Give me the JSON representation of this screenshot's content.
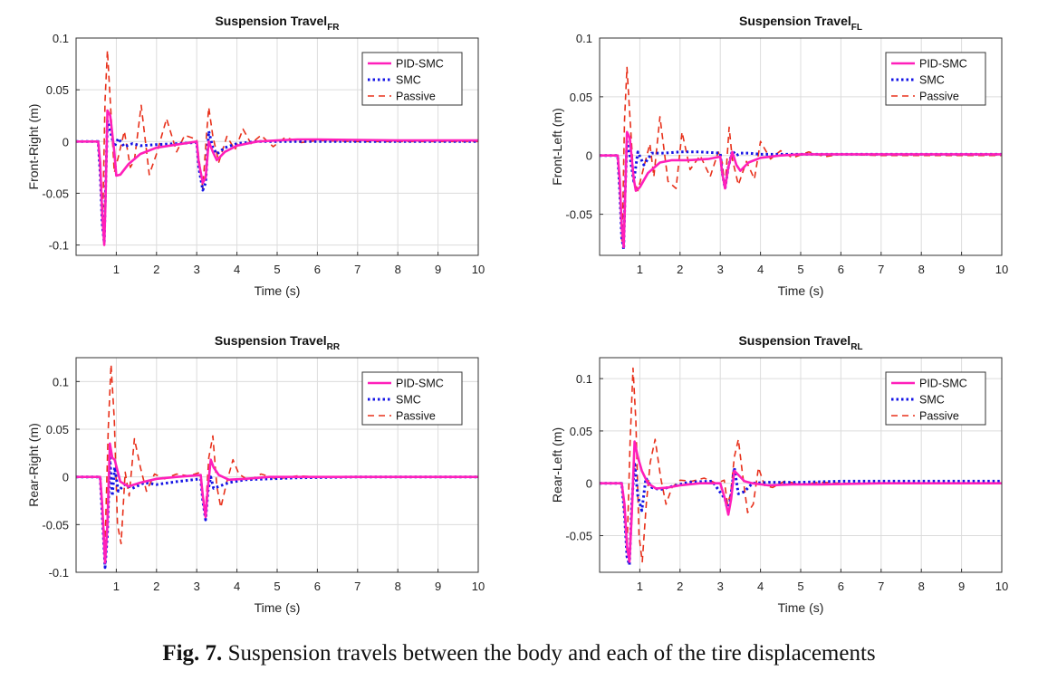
{
  "caption": {
    "label": "Fig. 7.",
    "text": "Suspension travels between the body and each of the tire displacements"
  },
  "colors": {
    "PID-SMC": "#ff1fba",
    "SMC": "#1414e6",
    "Passive": "#e8301a"
  },
  "chart_data": [
    {
      "type": "line",
      "title": "Suspension Travel",
      "title_subscript": "FR",
      "xlabel": "Time (s)",
      "ylabel": "Front-Right (m)",
      "xlim": [
        0,
        10
      ],
      "ylim": [
        -0.11,
        0.1
      ],
      "xticks": [
        1,
        2,
        3,
        4,
        5,
        6,
        7,
        8,
        9,
        10
      ],
      "yticks": [
        -0.1,
        -0.05,
        0,
        0.05,
        0.1
      ],
      "ytick_labels": [
        "-0.1",
        "-0.05",
        "0",
        "0.05",
        "0.1"
      ],
      "grid": true,
      "legend": "top-right",
      "series": [
        {
          "name": "PID-SMC",
          "x": [
            0,
            0.55,
            0.6,
            0.65,
            0.7,
            0.73,
            0.78,
            0.85,
            0.95,
            1.0,
            1.1,
            1.3,
            1.6,
            2.0,
            2.5,
            3.0,
            3.05,
            3.15,
            3.22,
            3.3,
            3.4,
            3.5,
            3.7,
            4.0,
            4.5,
            5.0,
            5.5,
            6,
            8,
            10
          ],
          "y": [
            0,
            0,
            -0.02,
            -0.07,
            -0.1,
            -0.06,
            0.03,
            0.025,
            -0.01,
            -0.033,
            -0.032,
            -0.022,
            -0.012,
            -0.006,
            -0.003,
            0,
            -0.02,
            -0.04,
            -0.035,
            0.0,
            -0.01,
            -0.018,
            -0.01,
            -0.004,
            0,
            0.001,
            0.002,
            0.002,
            0.001,
            0.001
          ]
        },
        {
          "name": "SMC",
          "x": [
            0,
            0.55,
            0.6,
            0.65,
            0.7,
            0.73,
            0.78,
            0.85,
            0.95,
            1.05,
            1.2,
            1.4,
            1.6,
            2.0,
            2.5,
            3.0,
            3.05,
            3.15,
            3.22,
            3.3,
            3.4,
            3.5,
            3.7,
            4.0,
            4.5,
            5,
            6,
            8,
            10
          ],
          "y": [
            0,
            0,
            -0.03,
            -0.08,
            -0.098,
            -0.05,
            0.02,
            0.01,
            -0.005,
            0.003,
            -0.005,
            -0.002,
            -0.004,
            -0.003,
            -0.002,
            -0.001,
            -0.025,
            -0.047,
            -0.04,
            0.01,
            -0.006,
            -0.012,
            -0.006,
            -0.002,
            0,
            0,
            0,
            0,
            0
          ]
        },
        {
          "name": "Passive",
          "x": [
            0,
            0.55,
            0.6,
            0.66,
            0.72,
            0.78,
            0.85,
            0.95,
            1.05,
            1.2,
            1.35,
            1.45,
            1.62,
            1.82,
            2.0,
            2.25,
            2.5,
            2.7,
            3.0,
            3.05,
            3.15,
            3.25,
            3.3,
            3.4,
            3.55,
            3.75,
            3.95,
            4.15,
            4.35,
            4.6,
            4.9,
            5.2,
            5.6,
            6,
            7,
            8,
            10
          ],
          "y": [
            0,
            0,
            -0.03,
            -0.08,
            0.04,
            0.088,
            0.04,
            -0.03,
            -0.015,
            0.01,
            -0.025,
            -0.018,
            0.035,
            -0.032,
            -0.012,
            0.022,
            -0.01,
            0.006,
            0.002,
            -0.015,
            -0.045,
            0.01,
            0.033,
            0.005,
            -0.02,
            0.005,
            -0.008,
            0.012,
            -0.002,
            0.006,
            -0.005,
            0.004,
            -0.001,
            0.001,
            0,
            0,
            0
          ]
        }
      ]
    },
    {
      "type": "line",
      "title": "Suspension Travel",
      "title_subscript": "FL",
      "xlabel": "Time (s)",
      "ylabel": "Front-Left (m)",
      "xlim": [
        0,
        10
      ],
      "ylim": [
        -0.085,
        0.1
      ],
      "xticks": [
        1,
        2,
        3,
        4,
        5,
        6,
        7,
        8,
        9,
        10
      ],
      "yticks": [
        -0.05,
        0,
        0.05,
        0.1
      ],
      "ytick_labels": [
        "-0.05",
        "0",
        "0.05",
        "0.1"
      ],
      "grid": true,
      "legend": "top-right",
      "series": [
        {
          "name": "PID-SMC",
          "x": [
            0,
            0.45,
            0.5,
            0.55,
            0.6,
            0.63,
            0.68,
            0.75,
            0.85,
            0.9,
            1.0,
            1.2,
            1.5,
            1.8,
            2.2,
            2.7,
            3.0,
            3.05,
            3.12,
            3.2,
            3.3,
            3.4,
            3.5,
            3.7,
            4.0,
            4.5,
            5.0,
            5.5,
            6,
            8,
            10
          ],
          "y": [
            0,
            0,
            -0.02,
            -0.06,
            -0.078,
            -0.04,
            0.02,
            0.015,
            -0.02,
            -0.03,
            -0.027,
            -0.015,
            -0.006,
            -0.004,
            -0.004,
            -0.003,
            -0.001,
            -0.015,
            -0.028,
            -0.01,
            0.003,
            -0.008,
            -0.013,
            -0.006,
            -0.002,
            0,
            0.001,
            0.001,
            0.001,
            0.001,
            0.001
          ]
        },
        {
          "name": "SMC",
          "x": [
            0,
            0.45,
            0.5,
            0.55,
            0.6,
            0.63,
            0.68,
            0.75,
            0.85,
            0.95,
            1.1,
            1.3,
            1.6,
            2.0,
            2.5,
            3.0,
            3.05,
            3.12,
            3.2,
            3.3,
            3.4,
            3.5,
            3.7,
            4.0,
            4.5,
            5,
            6,
            8,
            10
          ],
          "y": [
            0,
            0,
            -0.03,
            -0.07,
            -0.08,
            -0.035,
            0.012,
            0.0,
            -0.022,
            0.003,
            -0.008,
            0.002,
            0.002,
            0.003,
            0.003,
            0.002,
            -0.015,
            -0.028,
            -0.01,
            0.004,
            0.0,
            0.002,
            0.002,
            0.001,
            0.001,
            0.001,
            0.001,
            0.001,
            0.001
          ]
        },
        {
          "name": "Passive",
          "x": [
            0,
            0.45,
            0.5,
            0.56,
            0.62,
            0.68,
            0.75,
            0.85,
            0.95,
            1.1,
            1.25,
            1.35,
            1.5,
            1.7,
            1.9,
            2.05,
            2.25,
            2.5,
            2.75,
            2.95,
            3.05,
            3.12,
            3.22,
            3.3,
            3.45,
            3.65,
            3.85,
            4.0,
            4.25,
            4.5,
            4.8,
            5.2,
            5.6,
            6,
            7,
            8,
            10
          ],
          "y": [
            0,
            0,
            -0.03,
            -0.075,
            0.03,
            0.075,
            0.035,
            -0.02,
            -0.03,
            -0.01,
            0.01,
            -0.018,
            0.033,
            -0.022,
            -0.028,
            0.02,
            -0.012,
            0.0,
            -0.018,
            0.003,
            -0.006,
            -0.028,
            0.024,
            -0.003,
            -0.025,
            -0.005,
            -0.02,
            0.012,
            -0.003,
            0.004,
            -0.002,
            0.003,
            -0.001,
            0.001,
            0,
            0,
            0
          ]
        }
      ]
    },
    {
      "type": "line",
      "title": "Suspension Travel",
      "title_subscript": "RR",
      "xlabel": "Time (s)",
      "ylabel": "Rear-Right (m)",
      "xlim": [
        0,
        10
      ],
      "ylim": [
        -0.1,
        0.125
      ],
      "xticks": [
        1,
        2,
        3,
        4,
        5,
        6,
        7,
        8,
        9,
        10
      ],
      "yticks": [
        -0.1,
        -0.05,
        0,
        0.05,
        0.1
      ],
      "ytick_labels": [
        "-0.1",
        "-0.05",
        "0",
        "0.05",
        "0.1"
      ],
      "grid": true,
      "legend": "top-right",
      "series": [
        {
          "name": "PID-SMC",
          "x": [
            0,
            0.6,
            0.65,
            0.72,
            0.78,
            0.84,
            0.9,
            0.96,
            1.1,
            1.3,
            1.6,
            2.0,
            2.5,
            3.1,
            3.15,
            3.22,
            3.28,
            3.35,
            3.42,
            3.55,
            3.8,
            4.2,
            4.8,
            5.5,
            7,
            10
          ],
          "y": [
            0,
            0,
            -0.03,
            -0.09,
            -0.05,
            0.035,
            0.02,
            0.018,
            -0.005,
            -0.01,
            -0.006,
            -0.002,
            0,
            0.002,
            -0.02,
            -0.042,
            -0.01,
            0.018,
            0.01,
            0.002,
            -0.003,
            -0.002,
            0,
            0,
            0,
            0
          ]
        },
        {
          "name": "SMC",
          "x": [
            0,
            0.6,
            0.65,
            0.72,
            0.78,
            0.84,
            0.9,
            0.96,
            1.05,
            1.2,
            1.4,
            1.7,
            2.0,
            2.5,
            3.1,
            3.15,
            3.22,
            3.28,
            3.35,
            3.42,
            3.55,
            3.8,
            4.2,
            4.8,
            5.5,
            7,
            10
          ],
          "y": [
            0,
            0,
            -0.04,
            -0.095,
            -0.06,
            0.02,
            -0.02,
            0.01,
            -0.015,
            -0.008,
            -0.012,
            -0.006,
            -0.008,
            -0.005,
            -0.002,
            -0.025,
            -0.045,
            -0.015,
            0.0,
            -0.012,
            -0.01,
            -0.006,
            -0.003,
            -0.002,
            -0.001,
            0,
            0
          ]
        },
        {
          "name": "Passive",
          "x": [
            0,
            0.6,
            0.65,
            0.72,
            0.8,
            0.87,
            0.95,
            1.03,
            1.12,
            1.22,
            1.32,
            1.45,
            1.6,
            1.75,
            1.95,
            2.2,
            2.5,
            2.8,
            3.1,
            3.15,
            3.22,
            3.3,
            3.4,
            3.5,
            3.6,
            3.75,
            3.9,
            4.05,
            4.3,
            4.6,
            5.0,
            5.5,
            6,
            7,
            10
          ],
          "y": [
            0,
            0,
            -0.03,
            -0.07,
            0.05,
            0.118,
            0.06,
            -0.05,
            -0.07,
            0.005,
            -0.02,
            0.04,
            0.01,
            -0.015,
            0.003,
            -0.002,
            0.003,
            0.001,
            0.005,
            -0.02,
            -0.035,
            0.02,
            0.043,
            -0.01,
            -0.032,
            -0.005,
            0.018,
            0.003,
            -0.004,
            0.003,
            -0.002,
            0.001,
            0,
            0,
            0
          ]
        }
      ]
    },
    {
      "type": "line",
      "title": "Suspension Travel",
      "title_subscript": "RL",
      "xlabel": "Time (s)",
      "ylabel": "Rear-Left (m)",
      "xlim": [
        0,
        10
      ],
      "ylim": [
        -0.085,
        0.12
      ],
      "xticks": [
        1,
        2,
        3,
        4,
        5,
        6,
        7,
        8,
        9,
        10
      ],
      "yticks": [
        -0.05,
        0,
        0.05,
        0.1
      ],
      "ytick_labels": [
        "-0.05",
        "0",
        "0.05",
        "0.1"
      ],
      "grid": true,
      "legend": "top-right",
      "series": [
        {
          "name": "PID-SMC",
          "x": [
            0,
            0.55,
            0.62,
            0.68,
            0.74,
            0.8,
            0.87,
            0.95,
            1.05,
            1.2,
            1.4,
            1.7,
            2.0,
            2.5,
            3.0,
            3.12,
            3.2,
            3.27,
            3.35,
            3.45,
            3.6,
            3.8,
            4.2,
            4.8,
            5.5,
            7,
            10
          ],
          "y": [
            0,
            0,
            -0.02,
            -0.06,
            -0.075,
            -0.03,
            0.04,
            0.025,
            0.012,
            0.0,
            -0.005,
            -0.004,
            -0.002,
            0,
            0,
            -0.015,
            -0.03,
            -0.015,
            0.012,
            0.008,
            0.002,
            0.0,
            -0.002,
            -0.001,
            -0.001,
            0,
            0
          ]
        },
        {
          "name": "SMC",
          "x": [
            0,
            0.55,
            0.62,
            0.68,
            0.74,
            0.8,
            0.87,
            0.95,
            1.05,
            1.15,
            1.3,
            1.5,
            1.8,
            2.2,
            2.8,
            3.12,
            3.2,
            3.27,
            3.35,
            3.45,
            3.6,
            3.8,
            4.2,
            5,
            6,
            8,
            10
          ],
          "y": [
            0,
            0,
            -0.03,
            -0.07,
            -0.078,
            -0.02,
            0.02,
            -0.012,
            -0.026,
            0.005,
            -0.004,
            -0.006,
            -0.003,
            0.001,
            0.002,
            -0.015,
            -0.028,
            -0.01,
            0.015,
            -0.01,
            -0.008,
            0.0,
            0.001,
            0.001,
            0.002,
            0.002,
            0.002
          ]
        },
        {
          "name": "Passive",
          "x": [
            0,
            0.55,
            0.62,
            0.68,
            0.76,
            0.83,
            0.9,
            0.98,
            1.06,
            1.16,
            1.26,
            1.38,
            1.52,
            1.65,
            1.8,
            2.0,
            2.3,
            2.6,
            2.9,
            3.1,
            3.18,
            3.26,
            3.35,
            3.45,
            3.55,
            3.68,
            3.82,
            3.95,
            4.1,
            4.3,
            4.6,
            5.0,
            5.5,
            6,
            7,
            10
          ],
          "y": [
            0,
            0,
            -0.03,
            -0.065,
            0.04,
            0.11,
            0.06,
            -0.05,
            -0.075,
            -0.02,
            0.02,
            0.042,
            0.005,
            -0.02,
            -0.004,
            0.003,
            0.002,
            0.005,
            0.0,
            0.003,
            -0.02,
            -0.01,
            0.025,
            0.042,
            0.01,
            -0.028,
            -0.02,
            0.015,
            -0.002,
            -0.004,
            0.002,
            -0.001,
            0.001,
            0,
            0,
            0
          ]
        }
      ]
    }
  ]
}
